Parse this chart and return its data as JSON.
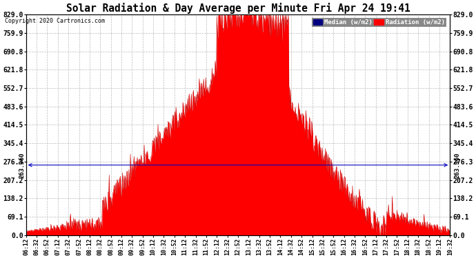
{
  "title": "Solar Radiation & Day Average per Minute Fri Apr 24 19:41",
  "copyright": "Copyright 2020 Cartronics.com",
  "legend_labels": [
    "Median (w/m2)",
    "Radiation (w/m2)"
  ],
  "legend_colors": [
    "#000080",
    "#ff0000"
  ],
  "ymin": 0.0,
  "ymax": 829.0,
  "yticks": [
    0.0,
    69.1,
    138.2,
    207.2,
    276.3,
    345.4,
    414.5,
    483.6,
    552.7,
    621.8,
    690.8,
    759.9,
    829.0
  ],
  "hline_value": 263.36,
  "hline_label": "263.360",
  "background_color": "#ffffff",
  "fill_color": "#ff0000",
  "x_tick_labels": [
    "06:12",
    "06:32",
    "06:52",
    "07:12",
    "07:32",
    "07:52",
    "08:12",
    "08:32",
    "08:52",
    "09:12",
    "09:32",
    "09:52",
    "10:12",
    "10:32",
    "10:52",
    "11:12",
    "11:32",
    "11:52",
    "12:12",
    "12:32",
    "12:52",
    "13:12",
    "13:32",
    "13:52",
    "14:12",
    "14:32",
    "14:52",
    "15:12",
    "15:32",
    "15:52",
    "16:12",
    "16:32",
    "16:52",
    "17:12",
    "17:32",
    "17:52",
    "18:12",
    "18:32",
    "18:52",
    "19:12",
    "19:32"
  ]
}
